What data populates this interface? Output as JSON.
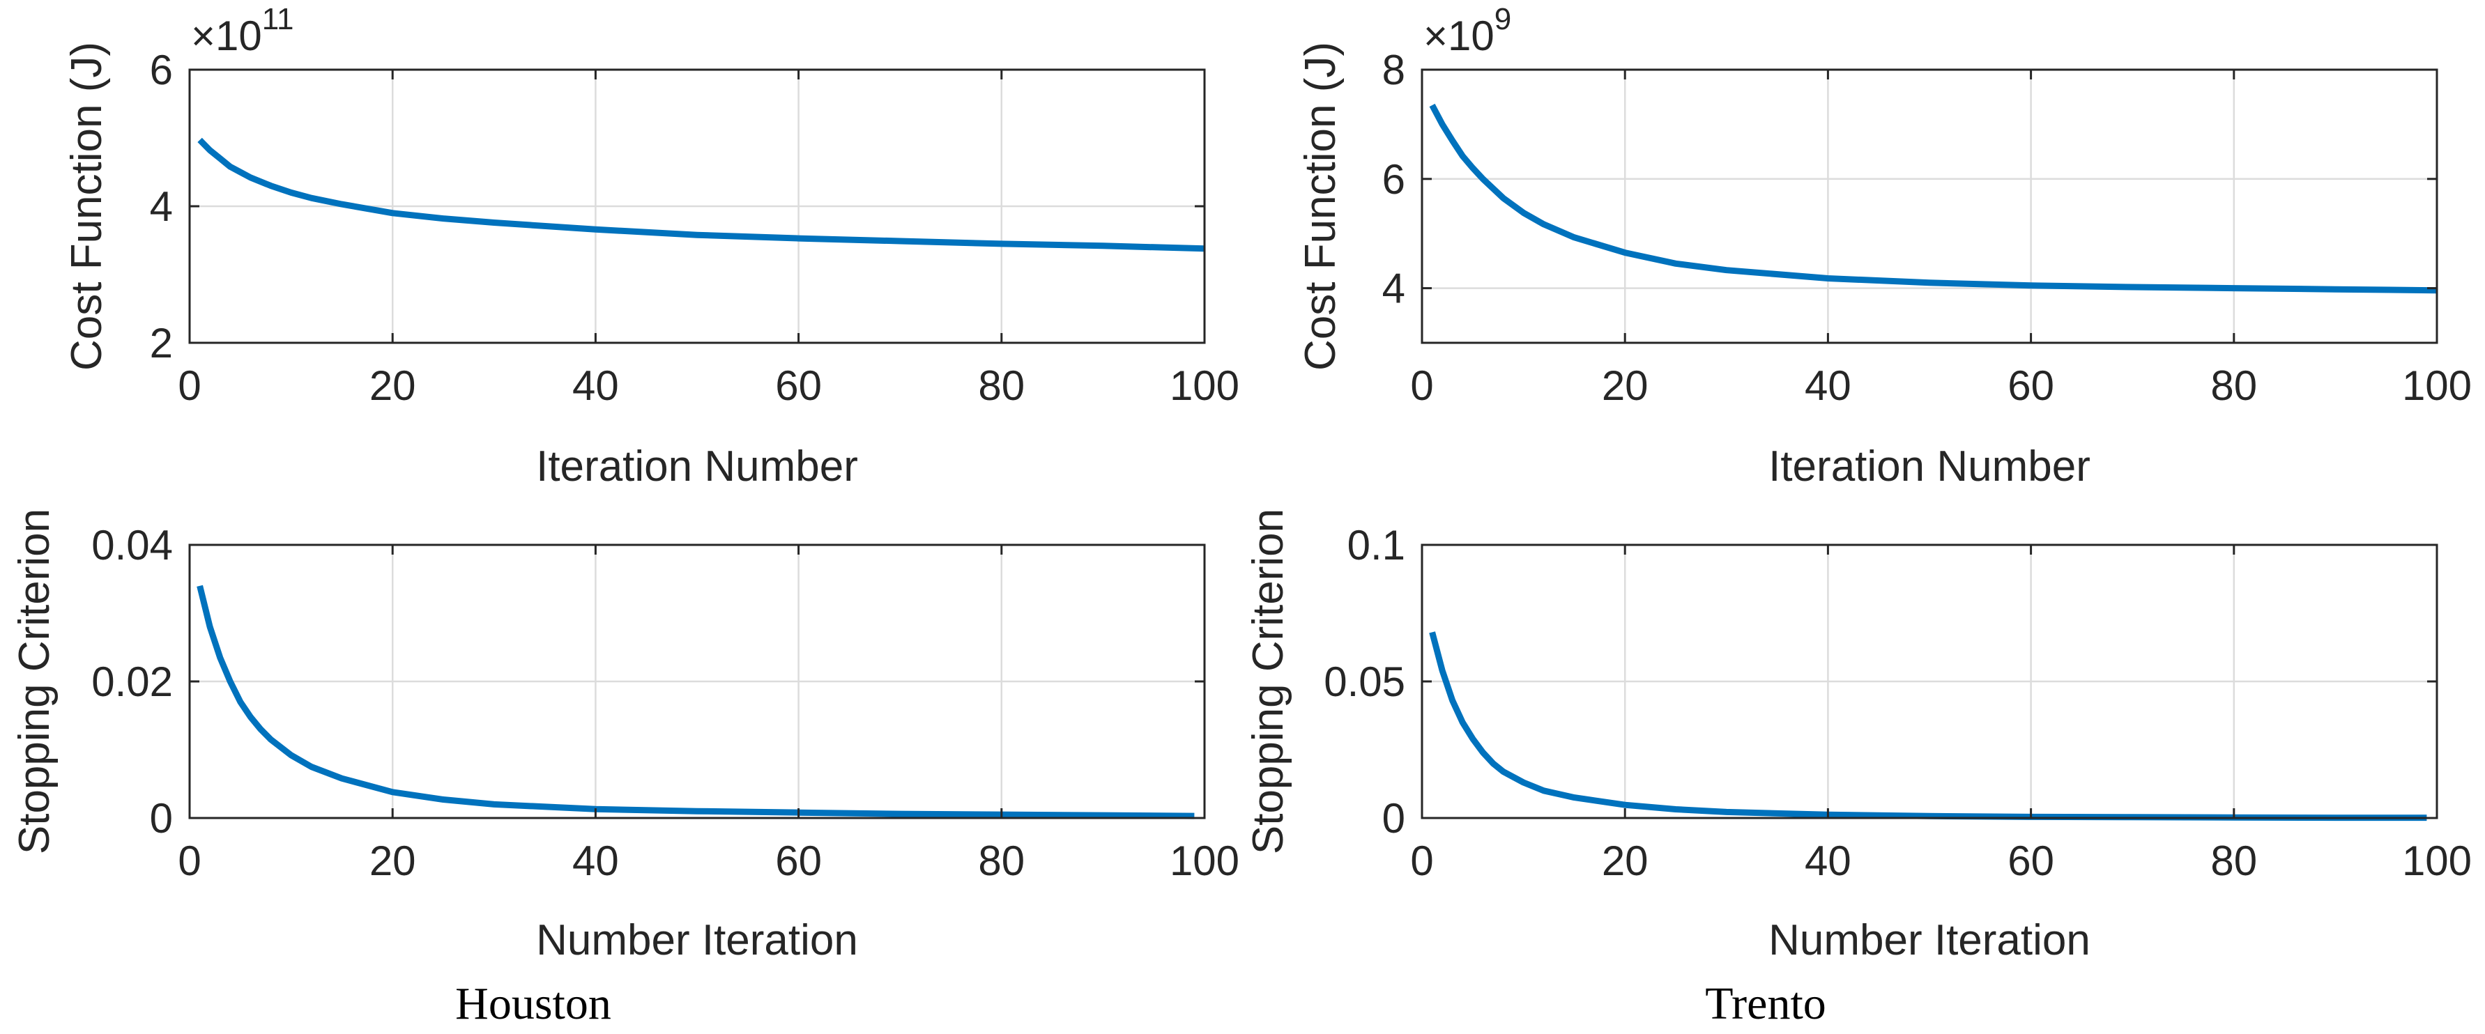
{
  "colors": {
    "series": "#0072BD",
    "axis": "#262626",
    "grid": "#DCDCDC",
    "caption": "#000000"
  },
  "chart_data": [
    {
      "type": "line",
      "panel": "houston-cost",
      "xlabel": "Iteration Number",
      "ylabel": "Cost Function (J)",
      "exponent_base": "×10",
      "exponent_power": "11",
      "xlim": [
        0,
        100
      ],
      "ylim": [
        2,
        6
      ],
      "xticks": [
        0,
        20,
        40,
        60,
        80,
        100
      ],
      "xtick_labels": [
        "0",
        "20",
        "40",
        "60",
        "80",
        "100"
      ],
      "yticks": [
        2,
        4,
        6
      ],
      "ytick_labels": [
        "2",
        "4",
        "6"
      ],
      "grid": true,
      "series": [
        {
          "name": "Houston cost",
          "x": [
            1,
            2,
            3,
            4,
            5,
            6,
            8,
            10,
            12,
            15,
            20,
            25,
            30,
            40,
            50,
            60,
            70,
            80,
            90,
            100
          ],
          "y": [
            4.97,
            4.82,
            4.7,
            4.58,
            4.5,
            4.42,
            4.3,
            4.2,
            4.12,
            4.03,
            3.9,
            3.82,
            3.76,
            3.66,
            3.58,
            3.53,
            3.49,
            3.45,
            3.42,
            3.38
          ]
        }
      ]
    },
    {
      "type": "line",
      "panel": "trento-cost",
      "xlabel": "Iteration Number",
      "ylabel": "Cost Function (J)",
      "exponent_base": "×10",
      "exponent_power": "9",
      "xlim": [
        0,
        100
      ],
      "ylim": [
        3,
        8
      ],
      "xticks": [
        0,
        20,
        40,
        60,
        80,
        100
      ],
      "xtick_labels": [
        "0",
        "20",
        "40",
        "60",
        "80",
        "100"
      ],
      "yticks": [
        4,
        6,
        8
      ],
      "ytick_labels": [
        "4",
        "6",
        "8"
      ],
      "grid": true,
      "series": [
        {
          "name": "Trento cost",
          "x": [
            1,
            2,
            3,
            4,
            5,
            6,
            8,
            10,
            12,
            15,
            20,
            25,
            30,
            40,
            50,
            60,
            70,
            80,
            90,
            100
          ],
          "y": [
            7.35,
            7.0,
            6.7,
            6.42,
            6.2,
            6.0,
            5.65,
            5.38,
            5.17,
            4.93,
            4.65,
            4.45,
            4.33,
            4.18,
            4.1,
            4.05,
            4.02,
            4.0,
            3.98,
            3.96
          ]
        }
      ]
    },
    {
      "type": "line",
      "panel": "houston-stopping",
      "xlabel": "Number Iteration",
      "ylabel": "Stopping Criterion",
      "xlim": [
        0,
        100
      ],
      "ylim": [
        0,
        0.04
      ],
      "xticks": [
        0,
        20,
        40,
        60,
        80,
        100
      ],
      "xtick_labels": [
        "0",
        "20",
        "40",
        "60",
        "80",
        "100"
      ],
      "yticks": [
        0,
        0.02,
        0.04
      ],
      "ytick_labels": [
        "0",
        "0.02",
        "0.04"
      ],
      "grid": true,
      "caption": "Houston",
      "series": [
        {
          "name": "Houston stopping criterion",
          "x": [
            1,
            2,
            3,
            4,
            5,
            6,
            7,
            8,
            10,
            12,
            15,
            20,
            25,
            30,
            40,
            50,
            60,
            70,
            80,
            90,
            99
          ],
          "y": [
            0.034,
            0.028,
            0.0235,
            0.02,
            0.017,
            0.0148,
            0.013,
            0.0115,
            0.0092,
            0.0075,
            0.0058,
            0.0038,
            0.0027,
            0.002,
            0.0013,
            0.001,
            0.0008,
            0.0006,
            0.0005,
            0.0004,
            0.0003
          ]
        }
      ]
    },
    {
      "type": "line",
      "panel": "trento-stopping",
      "xlabel": "Number Iteration",
      "ylabel": "Stopping Criterion",
      "xlim": [
        0,
        100
      ],
      "ylim": [
        0,
        0.1
      ],
      "xticks": [
        0,
        20,
        40,
        60,
        80,
        100
      ],
      "xtick_labels": [
        "0",
        "20",
        "40",
        "60",
        "80",
        "100"
      ],
      "yticks": [
        0,
        0.05,
        0.1
      ],
      "ytick_labels": [
        "0",
        "0.05",
        "0.1"
      ],
      "grid": true,
      "caption": "Trento",
      "series": [
        {
          "name": "Trento stopping criterion",
          "x": [
            1,
            2,
            3,
            4,
            5,
            6,
            7,
            8,
            10,
            12,
            15,
            20,
            25,
            30,
            40,
            50,
            60,
            70,
            80,
            90,
            99
          ],
          "y": [
            0.068,
            0.054,
            0.043,
            0.035,
            0.029,
            0.024,
            0.02,
            0.017,
            0.013,
            0.01,
            0.0075,
            0.0048,
            0.0032,
            0.0022,
            0.0012,
            0.0007,
            0.0004,
            0.0003,
            0.0002,
            0.0001,
            0.0001
          ]
        }
      ]
    }
  ]
}
